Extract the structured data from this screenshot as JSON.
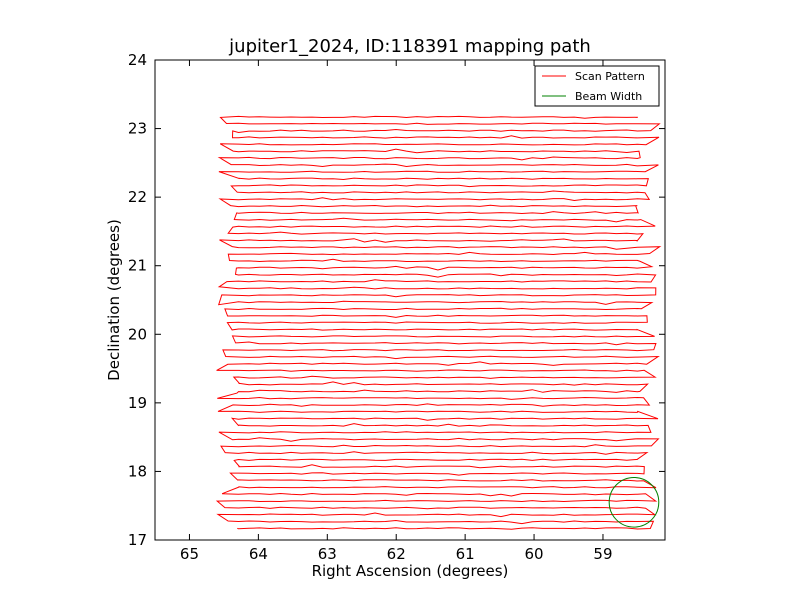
{
  "chart_data": {
    "type": "line",
    "title": "jupiter1_2024, ID:118391 mapping path",
    "xlabel": "Right Ascension (degrees)",
    "ylabel": "Declination (degrees)",
    "xlim": [
      65.5,
      58.1
    ],
    "ylim": [
      17,
      24
    ],
    "x_inverted": true,
    "xticks": [
      65,
      64,
      63,
      62,
      61,
      60,
      59
    ],
    "yticks": [
      17,
      18,
      19,
      20,
      21,
      22,
      23,
      24
    ],
    "xtick_labels": [
      "65",
      "64",
      "63",
      "62",
      "61",
      "60",
      "59"
    ],
    "ytick_labels": [
      "17",
      "18",
      "19",
      "20",
      "21",
      "22",
      "23",
      "24"
    ],
    "legend": {
      "placement": "top-right",
      "entries": [
        {
          "label": "Scan Pattern",
          "color": "#ff0000"
        },
        {
          "label": "Beam Width",
          "color": "#008000"
        }
      ]
    },
    "grid": false,
    "scan": {
      "ra_left": 64.44,
      "ra_right": 58.35,
      "dec_start": 17.17,
      "dec_end": 23.13,
      "row_spacing": 0.1,
      "color": "#ff0000"
    },
    "beam": {
      "center_ra": 58.55,
      "center_dec": 17.55,
      "radius_deg": 0.36,
      "color": "#008000"
    }
  }
}
